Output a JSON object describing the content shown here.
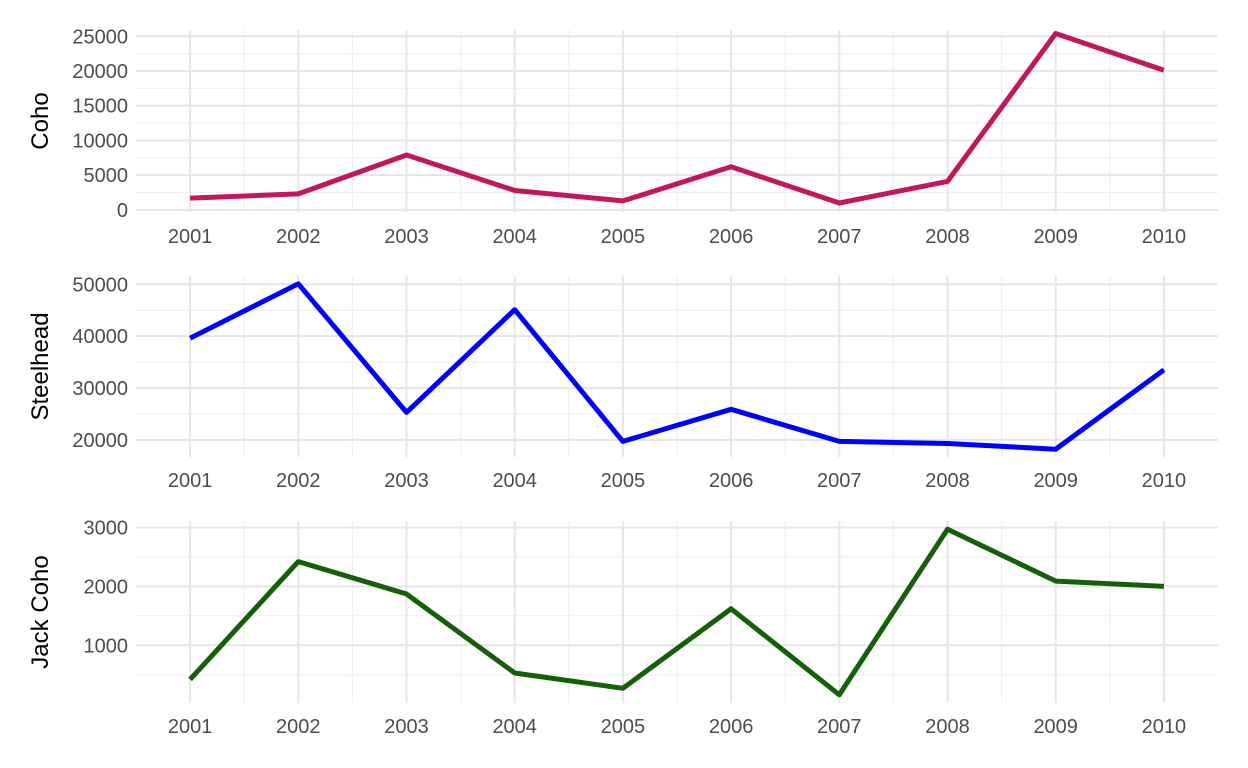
{
  "chart_data": [
    {
      "type": "line",
      "ylabel": "Coho",
      "xlabel": "",
      "color": "#c2185b",
      "x": [
        2001,
        2002,
        2003,
        2004,
        2005,
        2006,
        2007,
        2008,
        2009,
        2010
      ],
      "x_ticks": [
        "2001",
        "2002",
        "2003",
        "2004",
        "2005",
        "2006",
        "2007",
        "2008",
        "2009",
        "2010"
      ],
      "values": [
        1700,
        2300,
        7900,
        2800,
        1300,
        6200,
        1000,
        4100,
        25400,
        20100
      ],
      "y_ticks": [
        0,
        5000,
        10000,
        15000,
        20000,
        25000
      ],
      "y_tick_labels": [
        "0",
        "5000",
        "10000",
        "15000",
        "20000",
        "25000"
      ],
      "ylim": [
        -300,
        25900
      ],
      "grid": true
    },
    {
      "type": "line",
      "ylabel": "Steelhead",
      "xlabel": "",
      "color": "#0000ff",
      "x": [
        2001,
        2002,
        2003,
        2004,
        2005,
        2006,
        2007,
        2008,
        2009,
        2010
      ],
      "x_ticks": [
        "2001",
        "2002",
        "2003",
        "2004",
        "2005",
        "2006",
        "2007",
        "2008",
        "2009",
        "2010"
      ],
      "values": [
        39600,
        50100,
        25300,
        45100,
        19700,
        25900,
        19700,
        19300,
        18200,
        33500
      ],
      "y_ticks": [
        20000,
        30000,
        40000,
        50000
      ],
      "y_tick_labels": [
        "20000",
        "30000",
        "40000",
        "50000"
      ],
      "ylim": [
        16700,
        51600
      ],
      "grid": true
    },
    {
      "type": "line",
      "ylabel": "Jack Coho",
      "xlabel": "",
      "color": "#155f0a",
      "x": [
        2001,
        2002,
        2003,
        2004,
        2005,
        2006,
        2007,
        2008,
        2009,
        2010
      ],
      "x_ticks": [
        "2001",
        "2002",
        "2003",
        "2004",
        "2005",
        "2006",
        "2007",
        "2008",
        "2009",
        "2010"
      ],
      "values": [
        420,
        2420,
        1870,
        530,
        270,
        1620,
        160,
        2970,
        2090,
        2000
      ],
      "y_ticks": [
        1000,
        2000,
        3000
      ],
      "y_tick_labels": [
        "1000",
        "2000",
        "3000"
      ],
      "ylim": [
        20,
        3110
      ],
      "grid": true
    }
  ]
}
